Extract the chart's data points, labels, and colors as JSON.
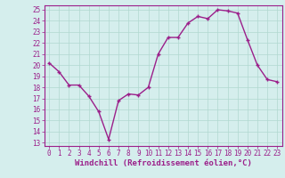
{
  "x": [
    0,
    1,
    2,
    3,
    4,
    5,
    6,
    7,
    8,
    9,
    10,
    11,
    12,
    13,
    14,
    15,
    16,
    17,
    18,
    19,
    20,
    21,
    22,
    23
  ],
  "y": [
    20.2,
    19.4,
    18.2,
    18.2,
    17.2,
    15.8,
    13.3,
    16.8,
    17.4,
    17.3,
    18.0,
    21.0,
    22.5,
    22.5,
    23.8,
    24.4,
    24.2,
    25.0,
    24.9,
    24.7,
    22.3,
    20.0,
    18.7,
    18.5
  ],
  "line_color": "#9b1f8a",
  "marker": "+",
  "marker_size": 3.5,
  "line_width": 1.0,
  "bg_color": "#d5eeed",
  "grid_color": "#b0d8d0",
  "xlabel": "Windchill (Refroidissement éolien,°C)",
  "xlabel_color": "#9b1f8a",
  "xlabel_fontsize": 6.5,
  "yticks": [
    13,
    14,
    15,
    16,
    17,
    18,
    19,
    20,
    21,
    22,
    23,
    24,
    25
  ],
  "xticks": [
    0,
    1,
    2,
    3,
    4,
    5,
    6,
    7,
    8,
    9,
    10,
    11,
    12,
    13,
    14,
    15,
    16,
    17,
    18,
    19,
    20,
    21,
    22,
    23
  ],
  "ylim": [
    12.7,
    25.4
  ],
  "xlim": [
    -0.5,
    23.5
  ],
  "tick_color": "#9b1f8a",
  "tick_fontsize": 5.5,
  "spine_color": "#9b1f8a"
}
